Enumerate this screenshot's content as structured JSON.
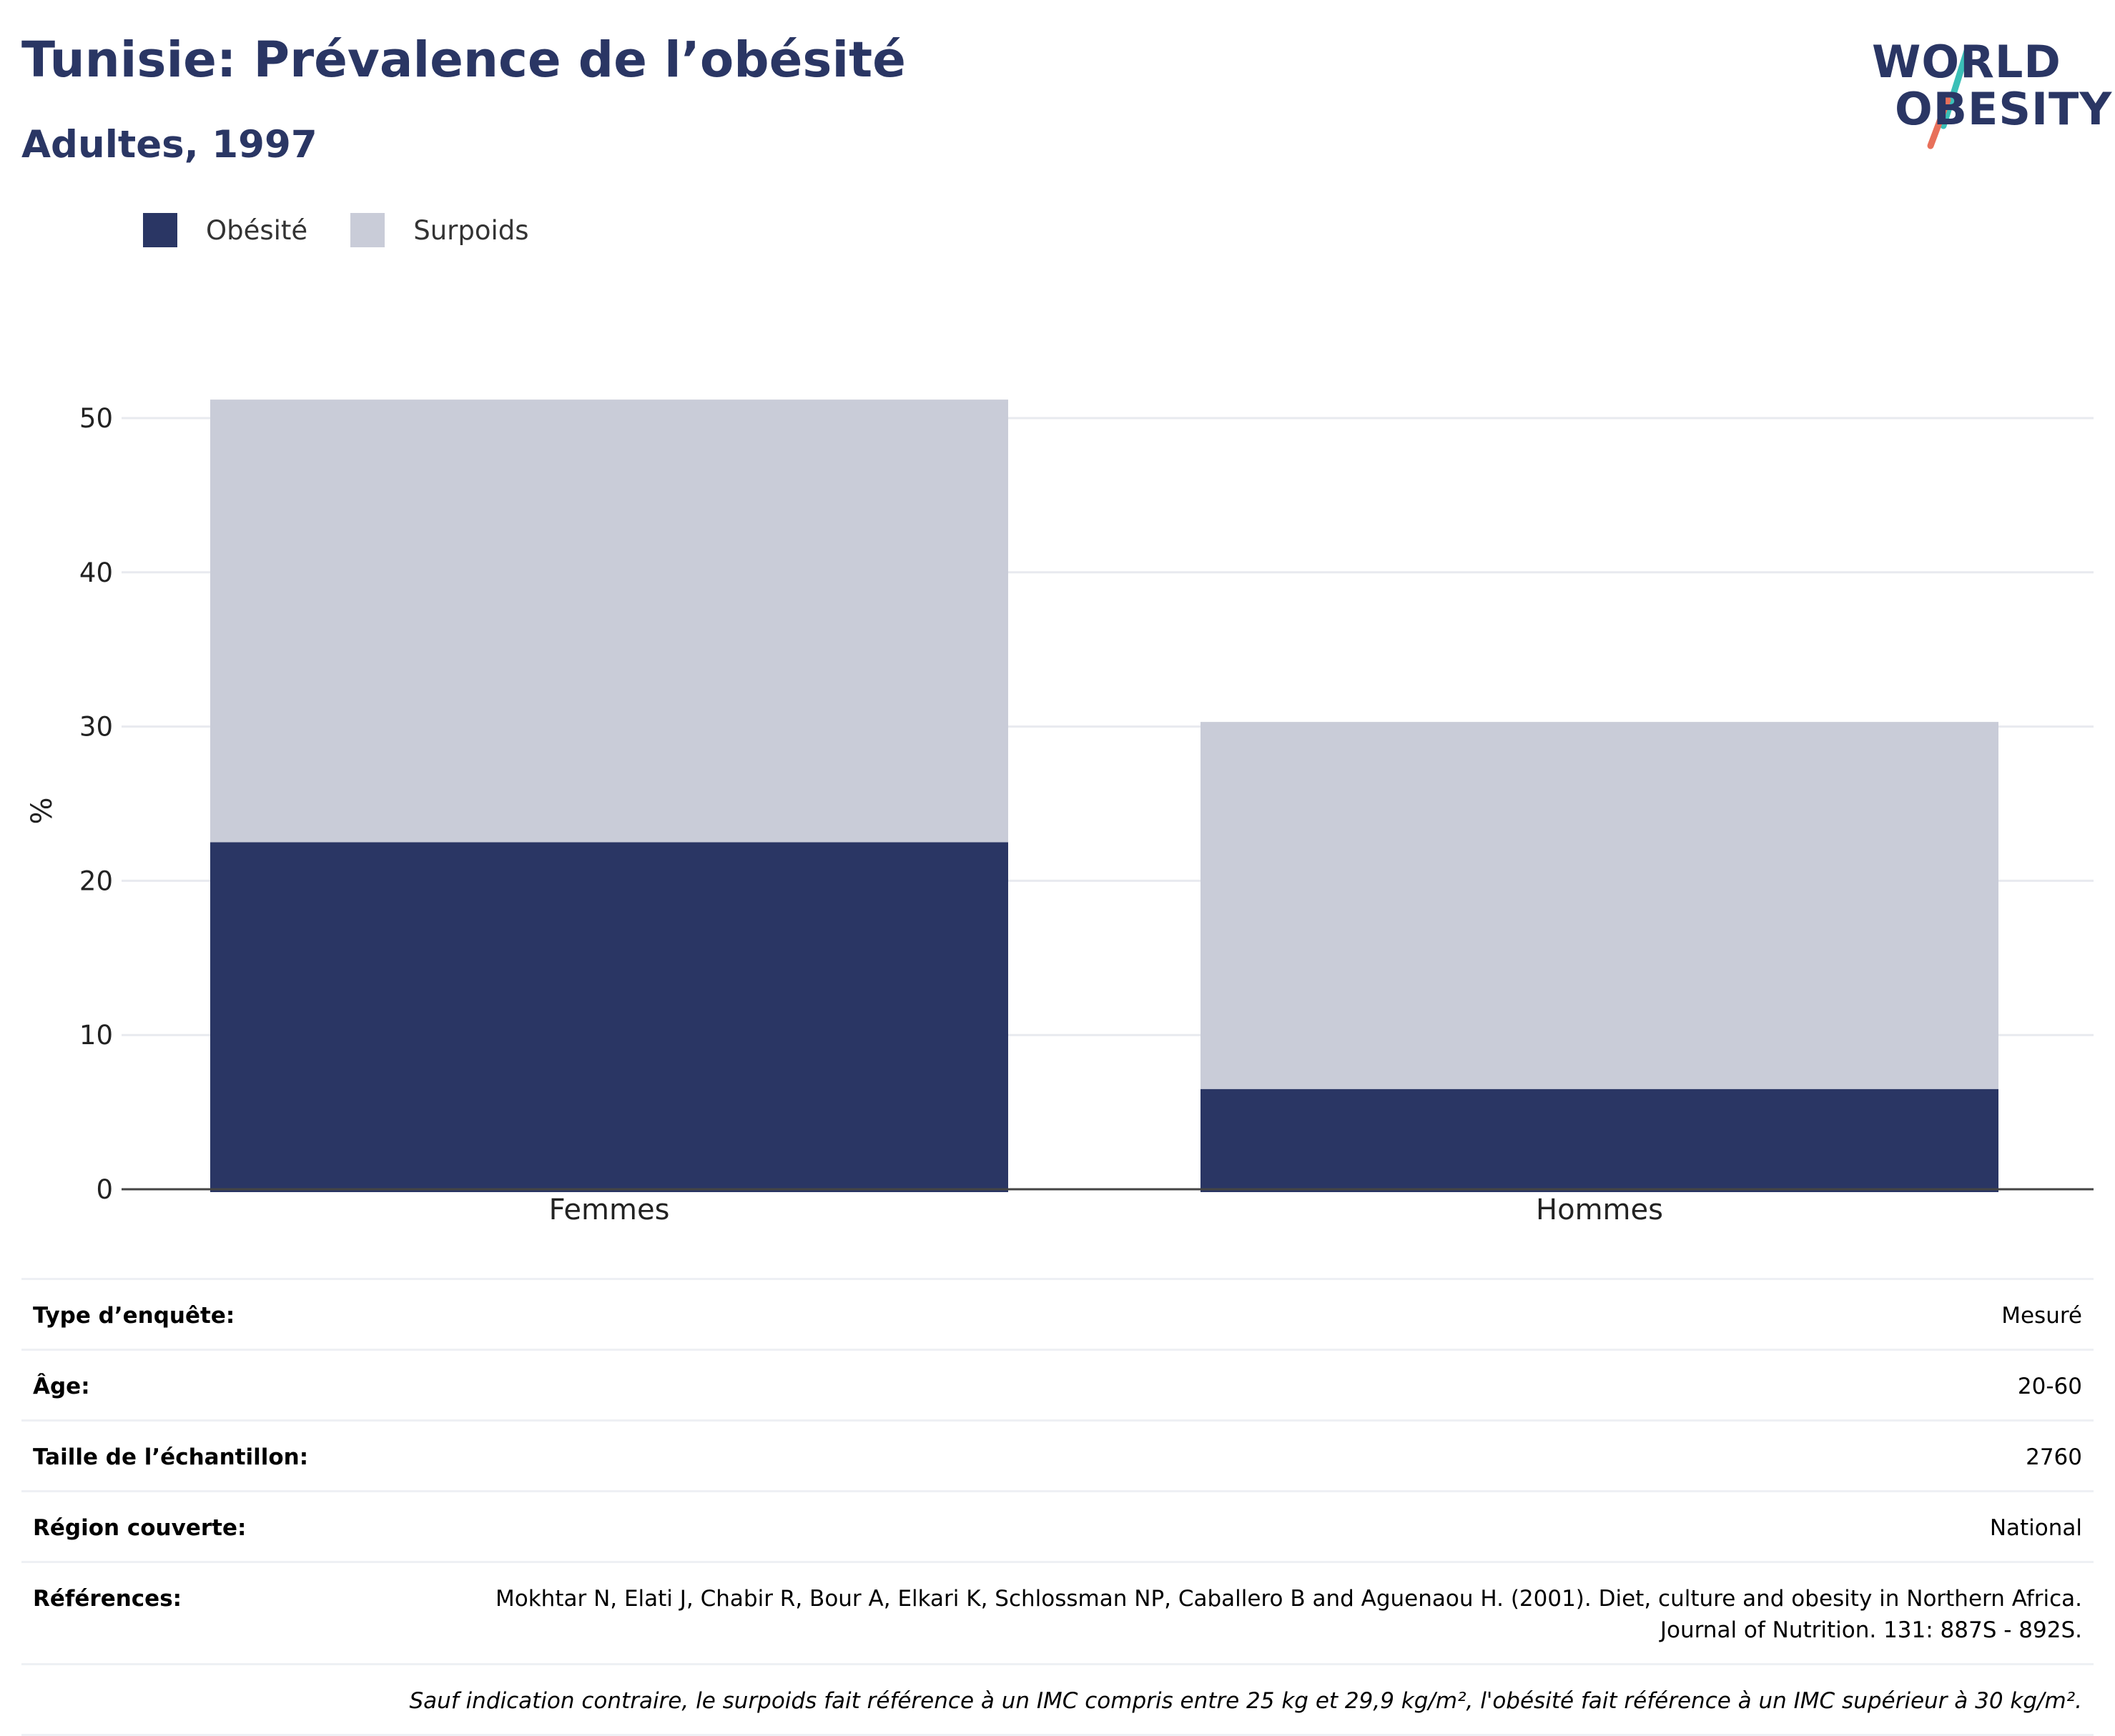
{
  "header": {
    "title": "Tunisie: Prévalence de l’obésité",
    "subtitle": "Adultes, 1997"
  },
  "logo": {
    "line1": "WORLD",
    "line2": "OBESITY",
    "color_text": "#2a3664",
    "color_slash_top": "#3bbfb7",
    "color_slash_bottom": "#e8705a"
  },
  "legend": {
    "items": [
      {
        "label": "Obésité",
        "color": "#2a3664"
      },
      {
        "label": "Surpoids",
        "color": "#c9ccd8"
      }
    ]
  },
  "chart_data": {
    "type": "bar",
    "stacked": true,
    "categories": [
      "Femmes",
      "Hommes"
    ],
    "series": [
      {
        "name": "Obésité",
        "values": [
          22.5,
          6.5
        ],
        "color": "#2a3664"
      },
      {
        "name": "Surpoids",
        "values": [
          28.7,
          23.8
        ],
        "color": "#c9ccd8"
      }
    ],
    "ylabel": "%",
    "ylim": [
      0,
      55
    ],
    "yticks": [
      0,
      10,
      20,
      30,
      40,
      50
    ],
    "grid": true,
    "legend_position": "top-left"
  },
  "meta": {
    "rows": [
      {
        "key": "Type d’enquête:",
        "value": "Mesuré"
      },
      {
        "key": "Âge:",
        "value": "20-60"
      },
      {
        "key": "Taille de l’échantillon:",
        "value": "2760"
      },
      {
        "key": "Région couverte:",
        "value": "National"
      },
      {
        "key": "Références:",
        "value": "Mokhtar N, Elati J, Chabir R, Bour A, Elkari K, Schlossman NP, Caballero B and Aguenaou H. (2001). Diet, culture and obesity in Northern Africa. Journal of Nutrition. 131: 887S - 892S."
      }
    ],
    "note": "Sauf indication contraire, le surpoids fait référence à un IMC compris entre 25 kg et 29,9 kg/m², l'obésité fait référence à un IMC supérieur à 30 kg/m²."
  }
}
